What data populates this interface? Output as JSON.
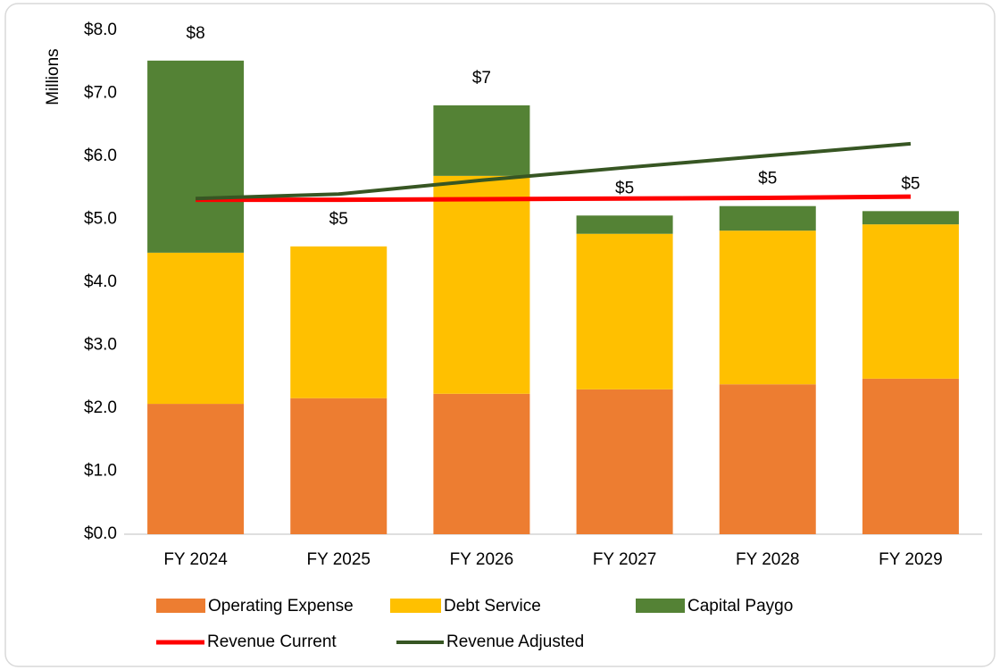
{
  "chart_data": {
    "type": "bar",
    "ylabel": "Millions",
    "categories": [
      "FY 2024",
      "FY 2025",
      "FY 2026",
      "FY 2027",
      "FY 2028",
      "FY 2029"
    ],
    "series": [
      {
        "name": "Operating Expense",
        "type": "bar",
        "color": "#ed7d31",
        "values": [
          2.07,
          2.16,
          2.23,
          2.3,
          2.38,
          2.47
        ]
      },
      {
        "name": "Debt Service",
        "type": "bar",
        "color": "#ffc000",
        "values": [
          2.4,
          2.41,
          3.46,
          2.47,
          2.44,
          2.45
        ]
      },
      {
        "name": "Capital Paygo",
        "type": "bar",
        "color": "#548235",
        "values": [
          3.05,
          0,
          1.12,
          0.29,
          0.39,
          0.21
        ]
      },
      {
        "name": "Revenue Current",
        "type": "line",
        "color": "#ff0000",
        "values": [
          5.31,
          5.31,
          5.32,
          5.33,
          5.34,
          5.36
        ]
      },
      {
        "name": "Revenue Adjusted",
        "type": "line",
        "color": "#375623",
        "values": [
          5.33,
          5.4,
          5.62,
          5.82,
          6.01,
          6.2
        ]
      }
    ],
    "totals": [
      7.52,
      4.57,
      6.81,
      5.06,
      5.21,
      5.13
    ],
    "value_labels": [
      "$8",
      "$5",
      "$7",
      "$5",
      "$5",
      "$5"
    ],
    "ylim": [
      0,
      8
    ],
    "yticks": [
      {
        "value": 0,
        "label": "$0.0"
      },
      {
        "value": 1,
        "label": "$1.0"
      },
      {
        "value": 2,
        "label": "$2.0"
      },
      {
        "value": 3,
        "label": "$3.0"
      },
      {
        "value": 4,
        "label": "$4.0"
      },
      {
        "value": 5,
        "label": "$5.0"
      },
      {
        "value": 6,
        "label": "$6.0"
      },
      {
        "value": 7,
        "label": "$7.0"
      },
      {
        "value": 8,
        "label": "$8.0"
      }
    ]
  }
}
